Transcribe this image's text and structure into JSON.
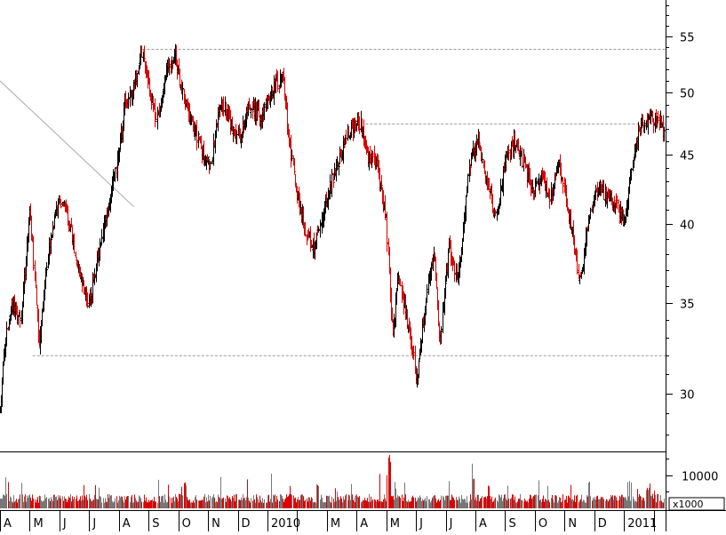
{
  "chart_data": {
    "type": "ohlc",
    "title": "",
    "xlabel": "",
    "ylabel": "",
    "price_axis": {
      "scale": "log",
      "ylim": [
        27.2,
        58.5
      ],
      "ticks": [
        "55",
        "50",
        "45",
        "40",
        "35",
        "30"
      ],
      "tick_values": [
        55,
        50,
        45,
        40,
        35,
        30
      ]
    },
    "volume_axis": {
      "ticks": [
        "10000"
      ],
      "tick_values": [
        10000
      ],
      "multiplier_label": "x1000",
      "ylim": [
        0,
        17000
      ]
    },
    "month_labels": [
      "A",
      "M",
      "J",
      "J",
      "A",
      "S",
      "O",
      "N",
      "D",
      "2010",
      "M",
      "A",
      "M",
      "J",
      "J",
      "A",
      "S",
      "O",
      "N",
      "D",
      "2011"
    ],
    "month_index": [
      0,
      1,
      2,
      3,
      4,
      5,
      6,
      7,
      8,
      9,
      11,
      12,
      13,
      14,
      15,
      16,
      17,
      18,
      19,
      20,
      21
    ],
    "x_range": [
      0,
      22.4
    ],
    "reference_lines": [
      {
        "price": 53.8,
        "x_from": 4.8,
        "x_to": 22.4
      },
      {
        "price": 47.4,
        "x_from": 12.3,
        "x_to": 22.4
      },
      {
        "price": 32.0,
        "x_from": 1.1,
        "x_to": 22.4
      }
    ],
    "trend_line": {
      "x_from": 0.0,
      "price_from": 51.0,
      "x_to": 4.5,
      "price_to": 41.2
    },
    "price_anchors": [
      [
        0.0,
        29.0
      ],
      [
        0.1,
        32.0
      ],
      [
        0.4,
        35.0
      ],
      [
        0.7,
        34.0
      ],
      [
        1.0,
        41.0
      ],
      [
        1.3,
        32.5
      ],
      [
        1.6,
        38.0
      ],
      [
        2.0,
        42.0
      ],
      [
        2.4,
        39.5
      ],
      [
        2.6,
        37.5
      ],
      [
        3.0,
        35.0
      ],
      [
        3.3,
        38.0
      ],
      [
        3.7,
        42.0
      ],
      [
        4.0,
        45.0
      ],
      [
        4.2,
        49.0
      ],
      [
        4.5,
        50.5
      ],
      [
        4.8,
        53.5
      ],
      [
        5.0,
        50.0
      ],
      [
        5.3,
        47.5
      ],
      [
        5.6,
        52.0
      ],
      [
        5.9,
        53.0
      ],
      [
        6.2,
        49.0
      ],
      [
        6.5,
        47.5
      ],
      [
        6.8,
        45.0
      ],
      [
        7.1,
        44.5
      ],
      [
        7.4,
        49.5
      ],
      [
        7.8,
        47.0
      ],
      [
        8.1,
        46.5
      ],
      [
        8.4,
        49.0
      ],
      [
        8.8,
        48.0
      ],
      [
        9.2,
        50.5
      ],
      [
        9.5,
        51.5
      ],
      [
        9.7,
        46.5
      ],
      [
        10.0,
        42.0
      ],
      [
        10.3,
        39.5
      ],
      [
        10.6,
        38.5
      ],
      [
        11.0,
        42.0
      ],
      [
        11.4,
        44.5
      ],
      [
        11.8,
        47.0
      ],
      [
        12.1,
        47.5
      ],
      [
        12.4,
        45.0
      ],
      [
        12.7,
        44.0
      ],
      [
        13.0,
        40.0
      ],
      [
        13.2,
        33.0
      ],
      [
        13.4,
        36.5
      ],
      [
        13.7,
        34.0
      ],
      [
        13.9,
        32.0
      ],
      [
        14.0,
        30.5
      ],
      [
        14.3,
        35.0
      ],
      [
        14.6,
        38.0
      ],
      [
        14.8,
        33.0
      ],
      [
        15.1,
        38.5
      ],
      [
        15.4,
        36.5
      ],
      [
        15.6,
        40.0
      ],
      [
        15.8,
        44.5
      ],
      [
        16.1,
        46.0
      ],
      [
        16.4,
        42.5
      ],
      [
        16.7,
        40.5
      ],
      [
        17.0,
        44.5
      ],
      [
        17.3,
        46.0
      ],
      [
        17.6,
        44.5
      ],
      [
        17.9,
        42.0
      ],
      [
        18.2,
        43.5
      ],
      [
        18.5,
        42.0
      ],
      [
        18.8,
        44.5
      ],
      [
        19.0,
        42.0
      ],
      [
        19.3,
        39.0
      ],
      [
        19.5,
        36.0
      ],
      [
        19.8,
        40.0
      ],
      [
        20.1,
        42.5
      ],
      [
        20.4,
        42.0
      ],
      [
        20.7,
        41.5
      ],
      [
        21.0,
        40.0
      ],
      [
        21.3,
        45.0
      ],
      [
        21.6,
        47.5
      ],
      [
        21.9,
        48.0
      ],
      [
        22.2,
        47.5
      ],
      [
        22.4,
        46.5
      ]
    ],
    "volume_profile": {
      "baseline": 3000,
      "spikes": [
        [
          13.1,
          16500
        ],
        [
          6.2,
          8000
        ],
        [
          15.9,
          9500
        ],
        [
          10.7,
          7500
        ],
        [
          21.8,
          6500
        ]
      ]
    },
    "colors": {
      "up": "#000000",
      "down": "#dd0000",
      "volume_up": "#777777",
      "volume_down": "#dd0000",
      "grid": "#999999"
    }
  }
}
